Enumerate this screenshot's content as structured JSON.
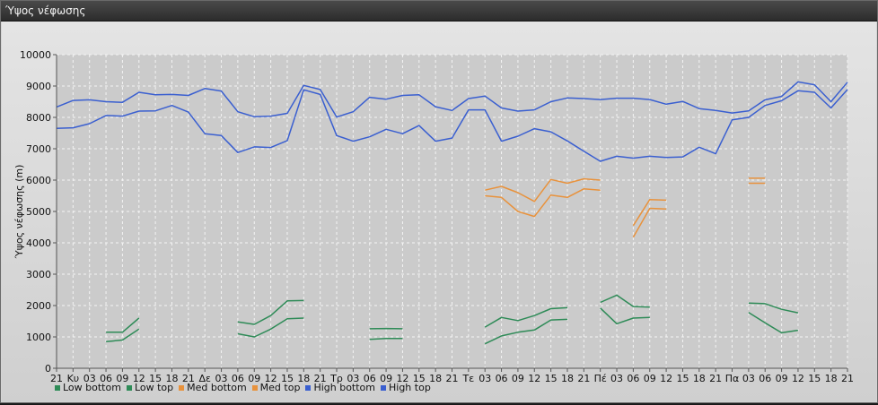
{
  "window": {
    "title": "Ύψος νέφωσης"
  },
  "chart_data": {
    "type": "line",
    "title": "",
    "ylabel": "Ύψος νέφωσης (m)",
    "xlabel": "",
    "ylim": [
      0,
      10000
    ],
    "yticks": [
      0,
      1000,
      2000,
      3000,
      4000,
      5000,
      6000,
      7000,
      8000,
      9000,
      10000
    ],
    "grid": true,
    "legend_position": "bottom-left",
    "x_labels": [
      "21",
      "Κυ",
      "03",
      "06",
      "09",
      "12",
      "15",
      "18",
      "21",
      "Δε",
      "03",
      "06",
      "09",
      "12",
      "15",
      "18",
      "21",
      "Τρ",
      "03",
      "06",
      "09",
      "12",
      "15",
      "18",
      "21",
      "Τε",
      "03",
      "06",
      "09",
      "12",
      "15",
      "18",
      "21",
      "Πέ",
      "03",
      "06",
      "09",
      "12",
      "15",
      "18",
      "21",
      "Πα",
      "03",
      "06",
      "09",
      "12",
      "15",
      "18",
      "21"
    ],
    "series": [
      {
        "name": "Low bottom",
        "color": "#2e8b57",
        "values": [
          null,
          null,
          null,
          850,
          900,
          1250,
          null,
          null,
          null,
          null,
          null,
          1100,
          1000,
          1250,
          1580,
          1600,
          null,
          null,
          null,
          920,
          950,
          950,
          null,
          null,
          null,
          null,
          780,
          1030,
          1150,
          1220,
          1540,
          1560,
          null,
          1920,
          1420,
          1600,
          1620,
          null,
          null,
          null,
          null,
          null,
          1780,
          1450,
          1130,
          1210,
          null,
          null,
          null
        ]
      },
      {
        "name": "Low top",
        "color": "#2e8b57",
        "values": [
          null,
          null,
          null,
          1150,
          1150,
          1600,
          null,
          null,
          null,
          null,
          null,
          1480,
          1400,
          1680,
          2150,
          2160,
          null,
          null,
          null,
          1260,
          1270,
          1260,
          null,
          null,
          null,
          null,
          1310,
          1620,
          1520,
          1680,
          1900,
          1930,
          null,
          2100,
          2330,
          1970,
          1950,
          null,
          null,
          null,
          null,
          null,
          2080,
          2060,
          1880,
          1770,
          null,
          null,
          null
        ]
      },
      {
        "name": "Med bottom",
        "color": "#e8923c",
        "values": [
          null,
          null,
          null,
          null,
          null,
          null,
          null,
          null,
          null,
          null,
          null,
          null,
          null,
          null,
          null,
          null,
          null,
          null,
          null,
          null,
          null,
          null,
          null,
          null,
          null,
          null,
          5500,
          5450,
          5000,
          4840,
          5520,
          5450,
          5720,
          5680,
          null,
          4180,
          5100,
          5080,
          null,
          null,
          null,
          null,
          5900,
          5900,
          null,
          null,
          null,
          null,
          null
        ]
      },
      {
        "name": "Med top",
        "color": "#e8923c",
        "values": [
          null,
          null,
          null,
          null,
          null,
          null,
          null,
          null,
          null,
          null,
          null,
          null,
          null,
          null,
          null,
          null,
          null,
          null,
          null,
          null,
          null,
          null,
          null,
          null,
          null,
          null,
          5680,
          5800,
          5600,
          5320,
          6020,
          5900,
          6040,
          6000,
          null,
          4550,
          5380,
          5360,
          null,
          null,
          null,
          null,
          6060,
          6060,
          null,
          null,
          null,
          null,
          null
        ]
      },
      {
        "name": "High bottom",
        "color": "#3a5fd0",
        "values": [
          7650,
          7670,
          7800,
          8060,
          8040,
          8200,
          8210,
          8380,
          8170,
          7480,
          7420,
          6880,
          7060,
          7040,
          7260,
          8880,
          8730,
          7420,
          7240,
          7380,
          7620,
          7480,
          7740,
          7240,
          7340,
          8240,
          8240,
          7240,
          7400,
          7640,
          7540,
          7250,
          6920,
          6600,
          6760,
          6700,
          6760,
          6720,
          6740,
          7050,
          6840,
          7920,
          8000,
          8380,
          8530,
          8850,
          8800,
          8300,
          8890
        ]
      },
      {
        "name": "High top",
        "color": "#3a5fd0",
        "values": [
          8330,
          8540,
          8560,
          8500,
          8480,
          8800,
          8720,
          8730,
          8700,
          8920,
          8840,
          8180,
          8020,
          8040,
          8130,
          9020,
          8890,
          8010,
          8180,
          8640,
          8580,
          8700,
          8720,
          8340,
          8220,
          8600,
          8680,
          8300,
          8200,
          8240,
          8500,
          8620,
          8600,
          8570,
          8610,
          8610,
          8570,
          8420,
          8510,
          8280,
          8220,
          8140,
          8210,
          8560,
          8670,
          9130,
          9040,
          8500,
          9120
        ]
      }
    ]
  }
}
